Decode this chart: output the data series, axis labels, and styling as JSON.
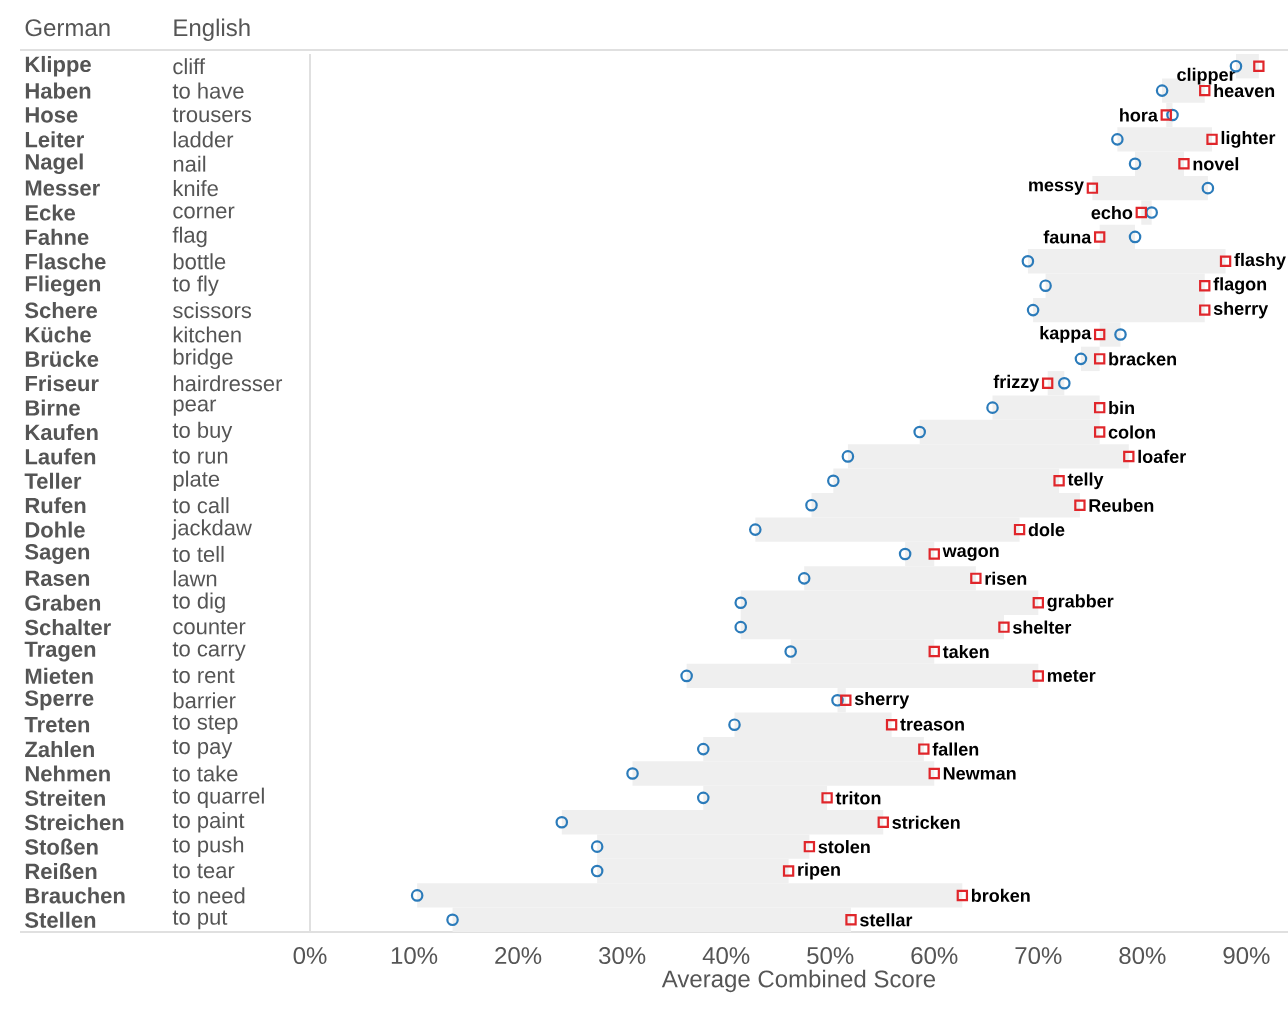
{
  "chart_data": {
    "type": "scatter",
    "orientation": "horizontal",
    "ylabel": "German",
    "y2label": "English",
    "xlabel": "Average Combined Score",
    "categories": [
      "Klippe",
      "Haben",
      "Hose",
      "Leiter",
      "Nagel",
      "Messer",
      "Ecke",
      "Fahne",
      "Flasche",
      "Fliegen",
      "Schere",
      "Küche",
      "Brücke",
      "Friseur",
      "Birne",
      "Kaufen",
      "Laufen",
      "Teller",
      "Rufen",
      "Dohle",
      "Sagen",
      "Rasen",
      "Graben",
      "Schalter",
      "Tragen",
      "Mieten",
      "Sperre",
      "Treten",
      "Zahlen",
      "Nehmen",
      "Streiten",
      "Streichen",
      "Stoßen",
      "Reißen",
      "Brauchen",
      "Stellen"
    ],
    "y2_categories": [
      "cliff",
      "to have",
      "trousers",
      "ladder",
      "nail",
      "knife",
      "corner",
      "flag",
      "bottle",
      "to fly",
      "scissors",
      "kitchen",
      "bridge",
      "hairdresser",
      "pear",
      "to buy",
      "to run",
      "plate",
      "to call",
      "jackdaw",
      "to tell",
      "lawn",
      "to dig",
      "counter",
      "to carry",
      "to rent",
      "barrier",
      "to step",
      "to pay",
      "to take",
      "to quarrel",
      "to paint",
      "to push",
      "to tear",
      "to need",
      "to put"
    ],
    "xlim": [
      0,
      94
    ],
    "xticks": [
      {
        "value": 0,
        "label": "0%"
      },
      {
        "value": 10,
        "label": "10%"
      },
      {
        "value": 20,
        "label": "20%"
      },
      {
        "value": 30,
        "label": "30%"
      },
      {
        "value": 40,
        "label": "40%"
      },
      {
        "value": 50,
        "label": "50%"
      },
      {
        "value": 60,
        "label": "60%"
      },
      {
        "value": 70,
        "label": "70%"
      },
      {
        "value": 80,
        "label": "80%"
      },
      {
        "value": 90,
        "label": "90%"
      }
    ],
    "series": [
      {
        "color": "#2b7bba",
        "marker": "circle",
        "values": [
          89.0,
          81.9,
          82.9,
          77.6,
          79.3,
          86.3,
          80.9,
          79.3,
          69.0,
          70.7,
          69.5,
          77.9,
          74.1,
          72.5,
          65.6,
          58.6,
          51.7,
          50.3,
          48.2,
          42.8,
          57.2,
          47.5,
          41.4,
          41.4,
          46.2,
          36.2,
          50.7,
          40.8,
          37.8,
          31.0,
          37.8,
          24.2,
          27.6,
          27.6,
          10.3,
          13.7
        ]
      },
      {
        "color": "#e0262b",
        "marker": "square",
        "values": [
          91.2,
          86.0,
          82.3,
          86.7,
          84.0,
          75.2,
          79.9,
          75.9,
          88.0,
          86.0,
          86.0,
          75.9,
          75.9,
          70.9,
          75.9,
          75.9,
          78.7,
          72.0,
          74.0,
          68.2,
          60.0,
          64.0,
          70.0,
          66.7,
          60.0,
          70.0,
          51.5,
          55.9,
          59.0,
          60.0,
          49.7,
          55.1,
          48.0,
          46.0,
          62.7,
          52.0
        ],
        "value_labels": [
          "clipper",
          "heaven",
          "hora",
          "lighter",
          "novel",
          "messy",
          "echo",
          "fauna",
          "flashy",
          "flagon",
          "sherry",
          "kappa",
          "bracken",
          "frizzy",
          "bin",
          "colon",
          "loafer",
          "telly",
          "Reuben",
          "dole",
          "wagon",
          "risen",
          "grabber",
          "shelter",
          "taken",
          "meter",
          "sherry",
          "treason",
          "fallen",
          "Newman",
          "triton",
          "stricken",
          "stolen",
          "ripen",
          "broken",
          "stellar"
        ]
      },
      {
        "type": "bar",
        "color": "#efefef",
        "base": [
          89.0,
          81.9,
          82.9,
          77.6,
          79.3,
          86.3,
          80.9,
          79.3,
          69.0,
          70.7,
          69.5,
          77.9,
          74.1,
          72.5,
          65.6,
          58.6,
          51.7,
          50.3,
          48.2,
          42.8,
          57.2,
          47.5,
          41.4,
          41.4,
          46.2,
          36.2,
          50.7,
          40.8,
          37.8,
          31.0,
          37.8,
          24.2,
          27.6,
          27.6,
          10.3,
          13.7
        ],
        "values": [
          2.2,
          4.1,
          -0.6,
          9.1,
          4.7,
          -11.1,
          -1.0,
          -3.4,
          19.0,
          15.3,
          16.5,
          -2.0,
          1.8,
          -1.6,
          10.3,
          17.3,
          27.0,
          21.7,
          25.8,
          25.4,
          2.8,
          16.5,
          28.6,
          25.3,
          13.8,
          33.8,
          0.8,
          15.1,
          21.2,
          29.0,
          11.9,
          30.9,
          20.4,
          18.4,
          52.4,
          38.3
        ]
      }
    ]
  }
}
